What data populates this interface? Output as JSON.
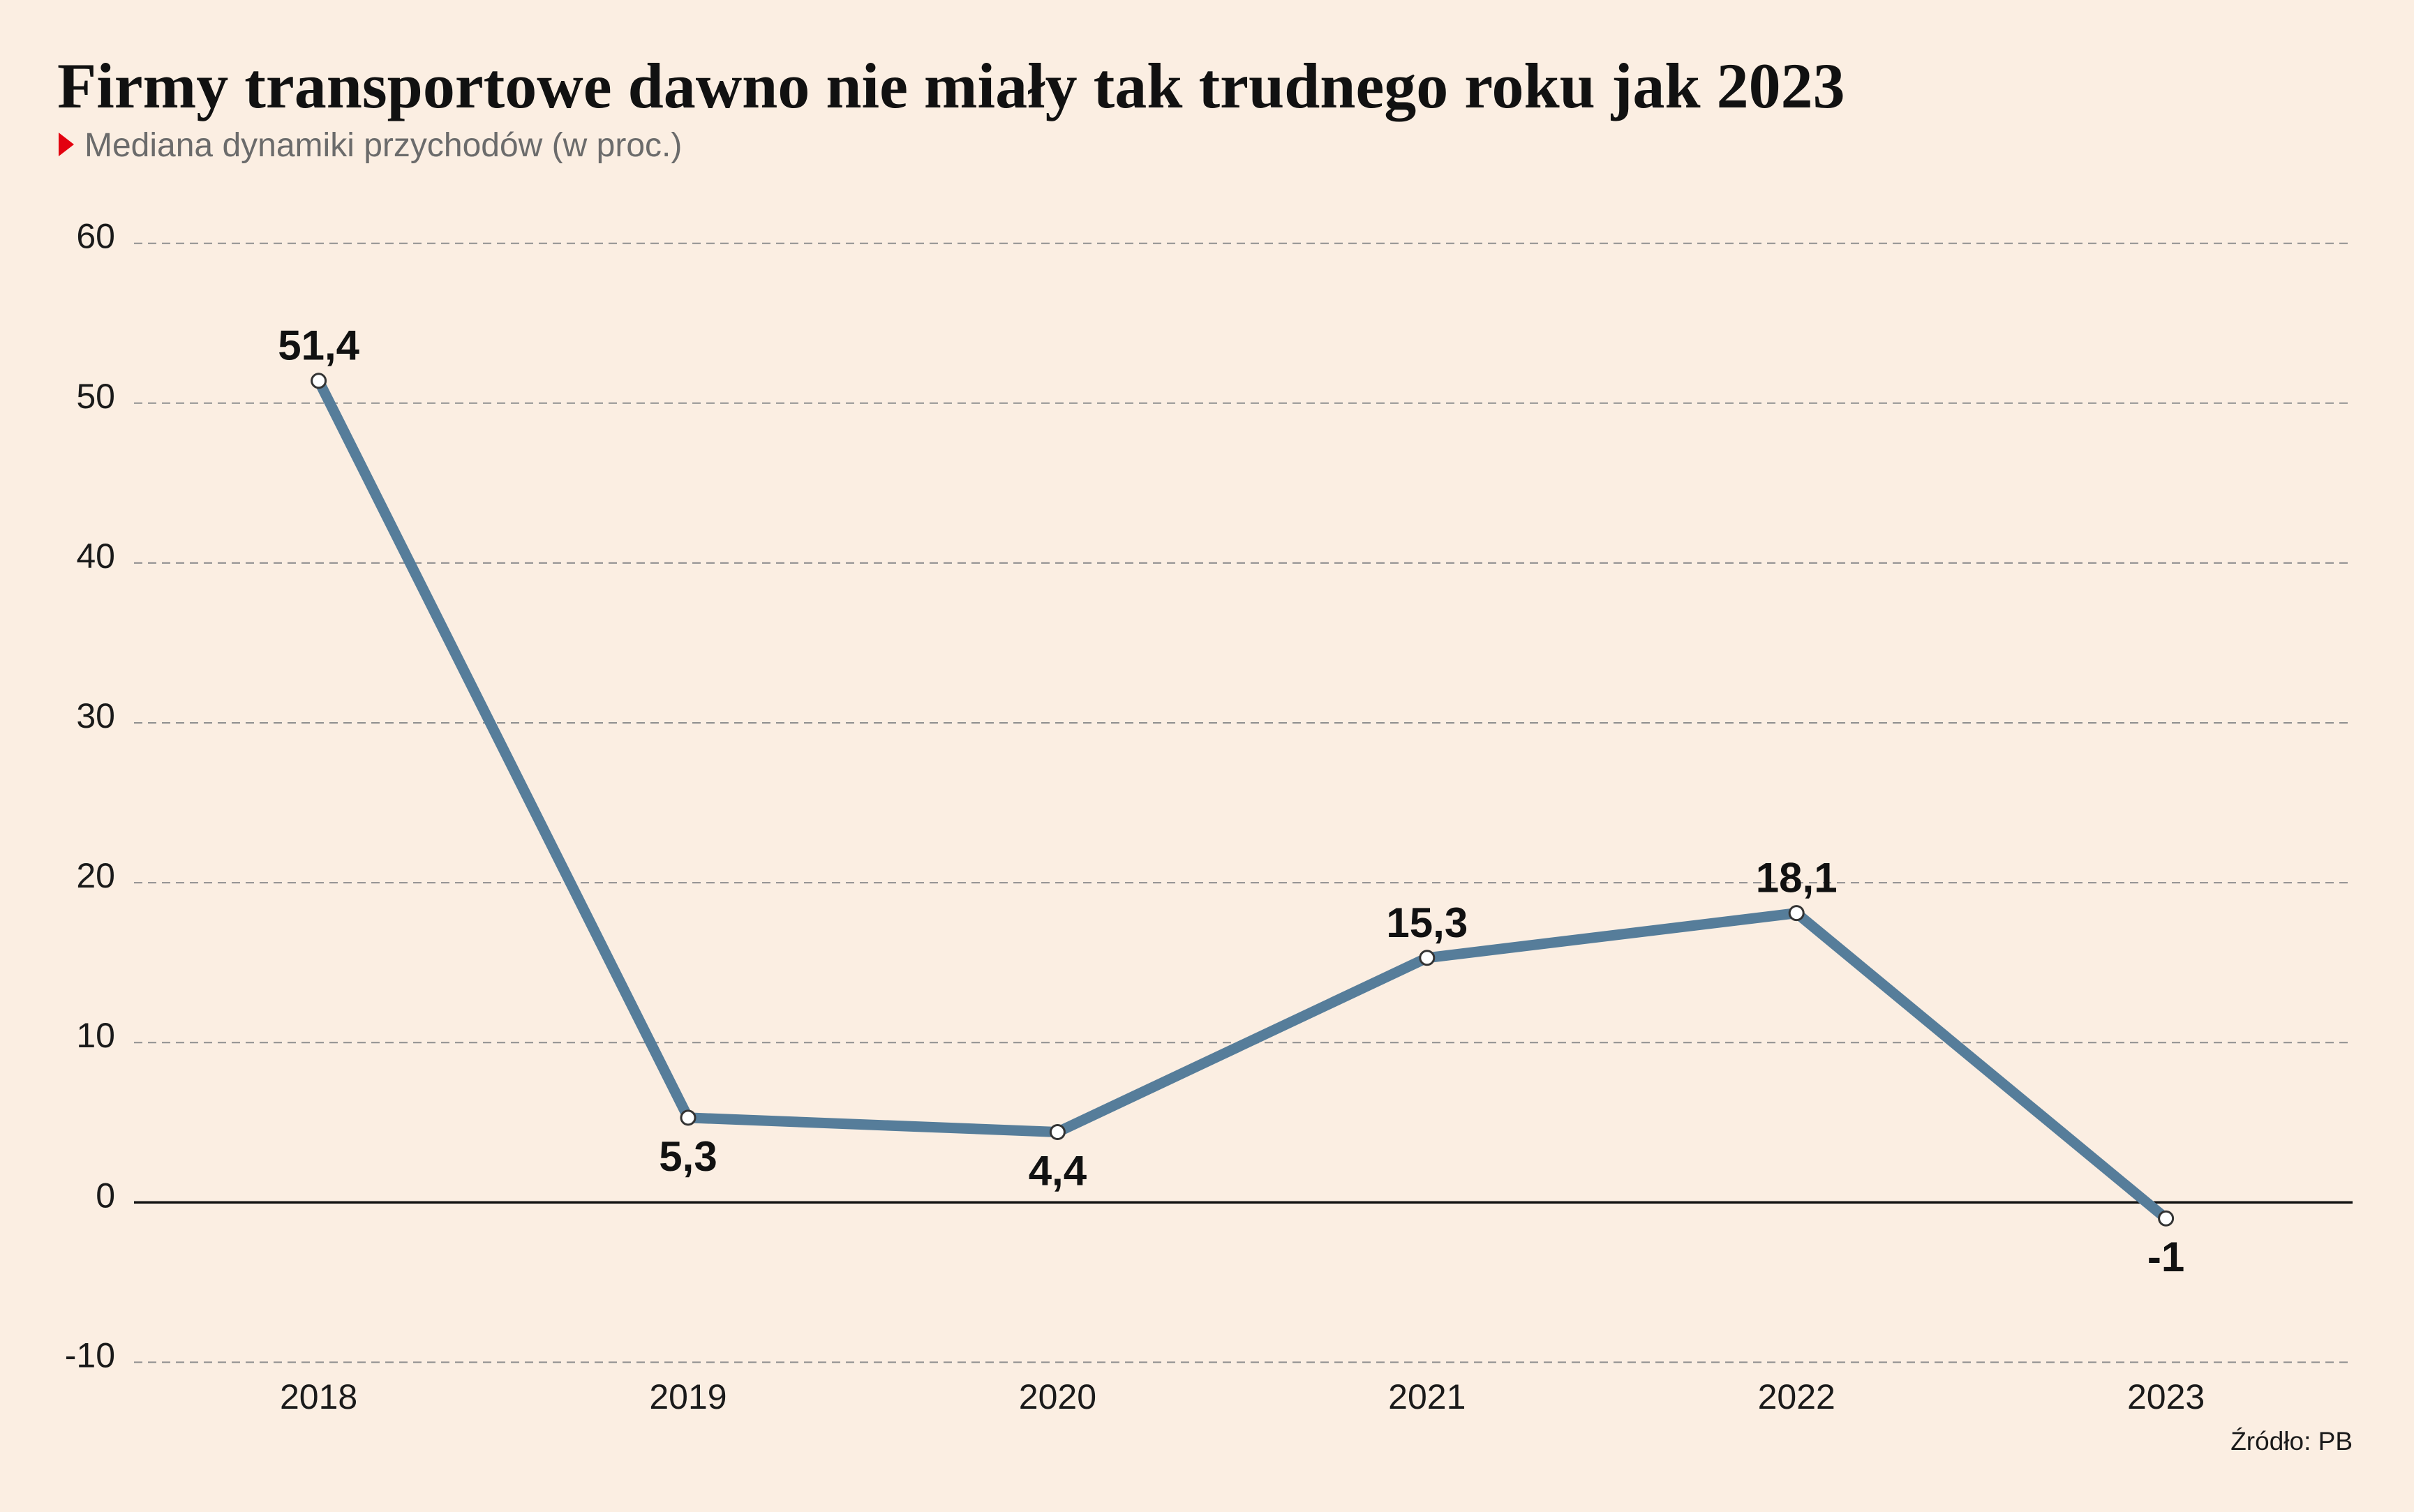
{
  "chart_data": {
    "type": "line",
    "title": "Firmy transportowe dawno nie miały tak trudnego roku jak 2023",
    "subtitle": "Mediana dynamiki przychodów (w proc.)",
    "source": "Źródło: PB",
    "categories": [
      "2018",
      "2019",
      "2020",
      "2021",
      "2022",
      "2023"
    ],
    "series": [
      {
        "values": [
          51.4,
          5.3,
          4.4,
          15.3,
          18.1,
          -1
        ],
        "data_labels": [
          "51,4",
          "5,3",
          "4,4",
          "15,3",
          "18,1",
          "-1"
        ]
      }
    ],
    "ylim": [
      -10,
      60
    ],
    "yticks": [
      60,
      50,
      40,
      30,
      20,
      10,
      0,
      -10
    ],
    "grid": true
  },
  "colors": {
    "background": "#fbeee2",
    "line": "#567d9a",
    "marker_fill": "#ffffff",
    "marker_stroke": "#333333",
    "grid": "#8f8f8f",
    "zero_line": "#111111",
    "accent": "#e3000f"
  }
}
